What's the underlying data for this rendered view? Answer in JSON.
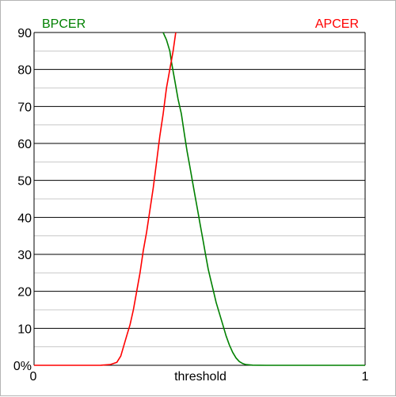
{
  "chart_data": {
    "type": "line",
    "title": "",
    "xlabel": "threshold",
    "ylabel": "",
    "xlim": [
      0,
      1
    ],
    "ylim": [
      0,
      90
    ],
    "x_tick_labels": [
      "0",
      "1"
    ],
    "y_tick_labels": [
      "0%",
      "10",
      "20",
      "30",
      "40",
      "50",
      "60",
      "70",
      "80",
      "90"
    ],
    "y_tick_values": [
      0,
      10,
      20,
      30,
      40,
      50,
      60,
      70,
      80,
      90
    ],
    "minor_y_step": 5,
    "grid": true,
    "series": [
      {
        "name": "BPCER",
        "color": "#008000",
        "legend_position": "top-left",
        "x": [
          0.39,
          0.4,
          0.41,
          0.415,
          0.425,
          0.435,
          0.445,
          0.455,
          0.462,
          0.47,
          0.478,
          0.486,
          0.494,
          0.502,
          0.51,
          0.518,
          0.526,
          0.534,
          0.542,
          0.55,
          0.56,
          0.57,
          0.58,
          0.59,
          0.6,
          0.61,
          0.62,
          0.63,
          0.64,
          0.66,
          0.7,
          0.8,
          0.9,
          1.0
        ],
        "y": [
          90,
          88,
          85,
          82,
          77,
          72,
          68,
          62,
          58,
          54,
          50,
          46,
          42,
          38,
          34,
          30,
          26,
          23,
          20,
          17,
          14,
          11,
          8,
          5.5,
          3.5,
          2,
          1,
          0.5,
          0.2,
          0.05,
          0,
          0,
          0,
          0
        ]
      },
      {
        "name": "APCER",
        "color": "#ff0000",
        "legend_position": "top-right",
        "x": [
          0.0,
          0.1,
          0.2,
          0.23,
          0.25,
          0.262,
          0.27,
          0.28,
          0.29,
          0.3,
          0.31,
          0.32,
          0.33,
          0.34,
          0.35,
          0.36,
          0.37,
          0.38,
          0.39,
          0.4,
          0.41,
          0.42,
          0.428
        ],
        "y": [
          0,
          0,
          0,
          0.2,
          0.8,
          2.5,
          5,
          8,
          11,
          15,
          20,
          25,
          31,
          36,
          42,
          48,
          55,
          62,
          68,
          75,
          80,
          85,
          90
        ]
      }
    ]
  }
}
